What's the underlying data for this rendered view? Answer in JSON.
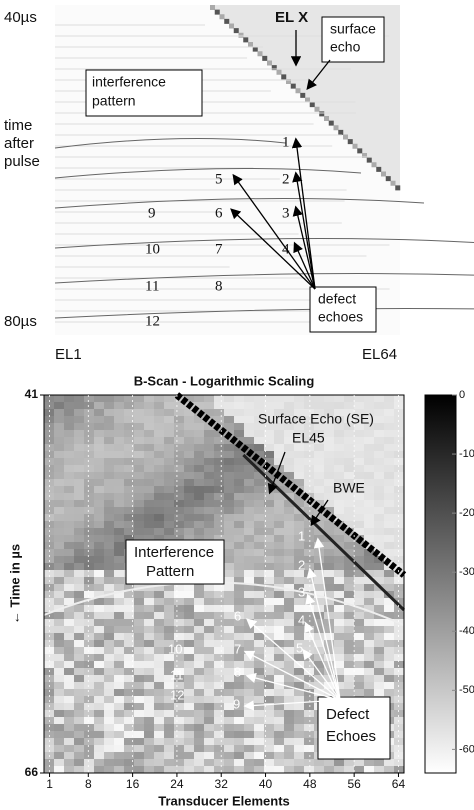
{
  "chart_data": [
    {
      "type": "bscan-sim",
      "start_label": "40µs",
      "end_label": "80µs",
      "y_label_lines": [
        "time",
        "after",
        "pulse"
      ],
      "x_start_label": "EL1",
      "x_end_label": "EL64",
      "element_label": "EL X",
      "surface_echo_lines": [
        "surface",
        "echo"
      ],
      "interference_lines": [
        "interference",
        "pattern"
      ],
      "defect_lines": [
        "defect",
        "echoes"
      ],
      "defect_numbers": [
        "1",
        "2",
        "3",
        "4",
        "5",
        "6",
        "7",
        "8",
        "9",
        "10",
        "11",
        "12"
      ]
    },
    {
      "type": "heatmap",
      "title": "B-Scan - Logarithmic Scaling",
      "x_label": "Transducer Elements",
      "y_label": "← Time in µs",
      "xlim": [
        0,
        65
      ],
      "xticks": [
        1,
        8,
        16,
        24,
        32,
        40,
        48,
        56,
        64
      ],
      "ylim": [
        41,
        66
      ],
      "yticks": [
        41,
        66
      ],
      "clim": [
        -64,
        0
      ],
      "cticks": [
        0,
        -10,
        -20,
        -30,
        -40,
        -50,
        -60
      ],
      "surface_echo_lines": [
        "Surface Echo (SE)",
        "EL45"
      ],
      "bwe_label": "BWE",
      "interference_lines": [
        "Interference",
        "Pattern"
      ],
      "defect_lines": [
        "Defect",
        "Echoes"
      ],
      "defect_numbers": [
        "1",
        "2",
        "3",
        "4",
        "5",
        "6",
        "7",
        "8",
        "9",
        "10",
        "11",
        "12"
      ]
    }
  ]
}
